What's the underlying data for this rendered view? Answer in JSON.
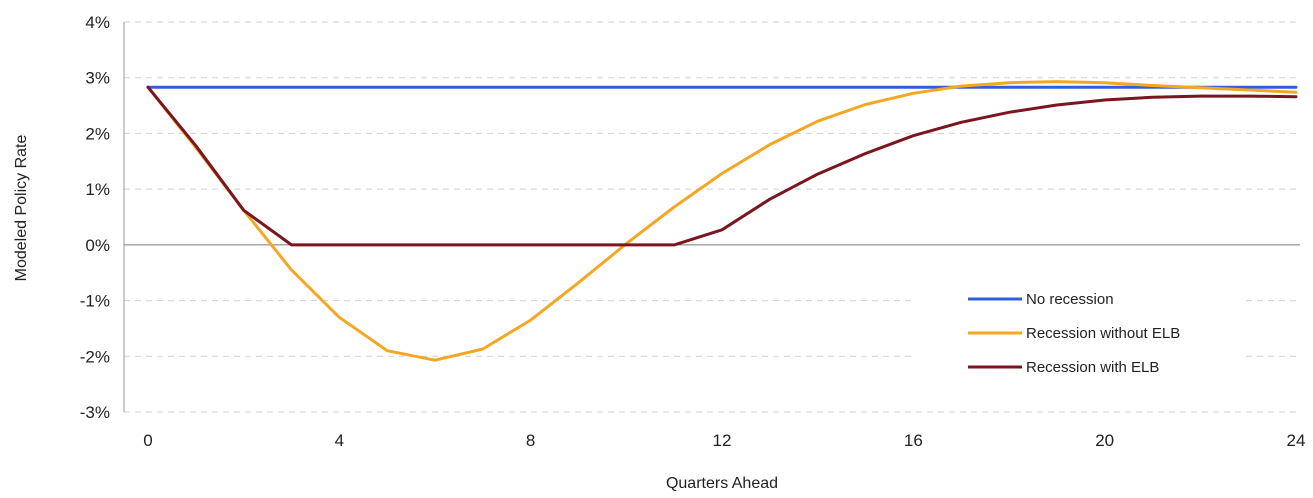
{
  "chart_data": {
    "type": "line",
    "title": "",
    "xlabel": "Quarters Ahead",
    "ylabel": "Modeled Policy Rate",
    "xlim": [
      0,
      24
    ],
    "ylim": [
      -3,
      4
    ],
    "x_ticks": [
      0,
      4,
      8,
      12,
      16,
      20,
      24
    ],
    "x_tick_labels": [
      "0",
      "4",
      "8",
      "12",
      "16",
      "20",
      "24"
    ],
    "y_ticks": [
      -3,
      -2,
      -1,
      0,
      1,
      2,
      3,
      4
    ],
    "y_tick_labels": [
      "-3%",
      "-2%",
      "-1%",
      "0%",
      "1%",
      "2%",
      "3%",
      "4%"
    ],
    "grid": "horizontal dashed",
    "legend_placement": "bottom-right",
    "x": [
      0,
      1,
      2,
      3,
      4,
      5,
      6,
      7,
      8,
      9,
      10,
      11,
      12,
      13,
      14,
      15,
      16,
      17,
      18,
      19,
      20,
      21,
      22,
      23,
      24
    ],
    "series": [
      {
        "name": "No recession",
        "color": "#2f5fdc",
        "values": [
          2.83,
          2.83,
          2.83,
          2.83,
          2.83,
          2.83,
          2.83,
          2.83,
          2.83,
          2.83,
          2.83,
          2.83,
          2.83,
          2.83,
          2.83,
          2.83,
          2.83,
          2.83,
          2.83,
          2.83,
          2.83,
          2.83,
          2.83,
          2.83,
          2.83
        ]
      },
      {
        "name": "Recession without ELB",
        "color": "#f5a623",
        "values": [
          2.83,
          1.75,
          0.62,
          -0.45,
          -1.3,
          -1.9,
          -2.07,
          -1.87,
          -1.35,
          -0.68,
          0.02,
          0.68,
          1.28,
          1.8,
          2.22,
          2.52,
          2.72,
          2.85,
          2.91,
          2.93,
          2.91,
          2.86,
          2.82,
          2.78,
          2.74
        ]
      },
      {
        "name": "Recession with ELB",
        "color": "#7b1520",
        "values": [
          2.83,
          1.78,
          0.62,
          0.0,
          0.0,
          0.0,
          0.0,
          0.0,
          0.0,
          0.0,
          0.0,
          0.0,
          0.27,
          0.82,
          1.27,
          1.64,
          1.96,
          2.2,
          2.38,
          2.51,
          2.6,
          2.65,
          2.67,
          2.67,
          2.66
        ]
      }
    ]
  }
}
